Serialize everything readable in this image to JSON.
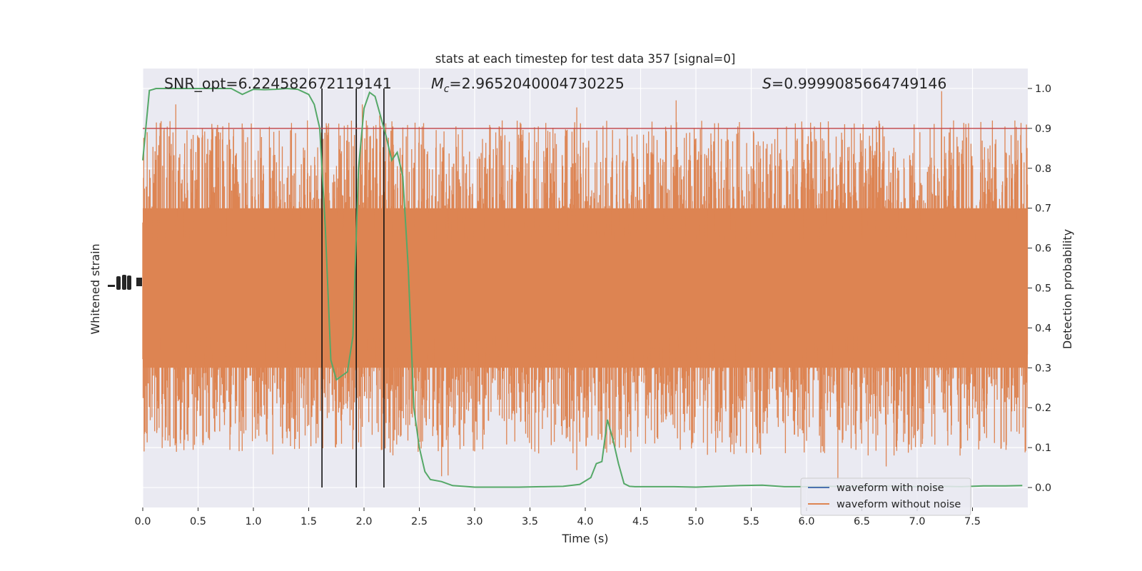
{
  "chart_data": {
    "type": "line",
    "title": "stats at each timestep for test data 357 [signal=0]",
    "xlabel": "Time (s)",
    "ylabel_left": "Whitened strain",
    "ylabel_right": "Detection probability",
    "xlim": [
      0.0,
      8.0
    ],
    "ylim_right": [
      -0.05,
      1.05
    ],
    "x_ticks": [
      "0.0",
      "0.5",
      "1.0",
      "1.5",
      "2.0",
      "2.5",
      "3.0",
      "3.5",
      "4.0",
      "4.5",
      "5.0",
      "5.5",
      "6.0",
      "6.5",
      "7.0",
      "7.5"
    ],
    "y_ticks_right": [
      "0.0",
      "0.1",
      "0.2",
      "0.3",
      "0.4",
      "0.5",
      "0.6",
      "0.7",
      "0.8",
      "0.9",
      "1.0"
    ],
    "annotations": {
      "snr": "SNR_opt=6.224582672119141",
      "mc_symbol": "M",
      "mc_sub": "c",
      "mc_value": "=2.9652040004730225",
      "s_symbol": "S",
      "s_value": "=0.9999085664749146"
    },
    "threshold": {
      "value": 0.9,
      "color": "#c44e52"
    },
    "vertical_markers": [
      1.62,
      1.93,
      2.18
    ],
    "series": [
      {
        "name": "waveform with noise",
        "color": "#4c72b0"
      },
      {
        "name": "waveform without noise",
        "color": "#dd8452"
      }
    ],
    "noise_series": {
      "color": "#dd8452",
      "center": 0.5,
      "spread": 0.5
    },
    "probability_series": {
      "color": "#55a868",
      "x": [
        0.0,
        0.06,
        0.12,
        0.2,
        0.3,
        0.4,
        0.5,
        0.6,
        0.7,
        0.8,
        0.9,
        1.0,
        1.1,
        1.2,
        1.3,
        1.4,
        1.5,
        1.55,
        1.6,
        1.65,
        1.7,
        1.75,
        1.8,
        1.85,
        1.9,
        1.95,
        2.0,
        2.05,
        2.1,
        2.15,
        2.2,
        2.25,
        2.3,
        2.35,
        2.4,
        2.45,
        2.5,
        2.55,
        2.6,
        2.7,
        2.8,
        2.9,
        3.0,
        3.2,
        3.4,
        3.6,
        3.8,
        3.95,
        4.05,
        4.1,
        4.15,
        4.2,
        4.25,
        4.3,
        4.35,
        4.4,
        4.45,
        4.6,
        4.8,
        5.0,
        5.2,
        5.4,
        5.6,
        5.8,
        6.0,
        6.2,
        6.4,
        6.6,
        6.8,
        7.0,
        7.2,
        7.4,
        7.6,
        7.8,
        7.95
      ],
      "y": [
        0.82,
        0.995,
        1.0,
        1.0,
        1.0,
        1.0,
        1.0,
        1.0,
        1.0,
        1.0,
        0.985,
        0.998,
        0.997,
        0.998,
        1.0,
        0.998,
        0.985,
        0.96,
        0.9,
        0.65,
        0.32,
        0.27,
        0.28,
        0.29,
        0.38,
        0.8,
        0.95,
        0.99,
        0.98,
        0.93,
        0.88,
        0.82,
        0.84,
        0.78,
        0.55,
        0.2,
        0.1,
        0.04,
        0.02,
        0.015,
        0.005,
        0.003,
        0.001,
        0.001,
        0.001,
        0.002,
        0.003,
        0.008,
        0.025,
        0.06,
        0.065,
        0.17,
        0.12,
        0.06,
        0.01,
        0.003,
        0.002,
        0.002,
        0.002,
        0.001,
        0.003,
        0.005,
        0.006,
        0.002,
        0.002,
        0.003,
        0.002,
        0.004,
        0.003,
        0.002,
        0.003,
        0.002,
        0.004,
        0.004,
        0.005
      ]
    },
    "legend": {
      "placement": "lower-right"
    },
    "grid": true,
    "background": "#eaeaf2"
  }
}
